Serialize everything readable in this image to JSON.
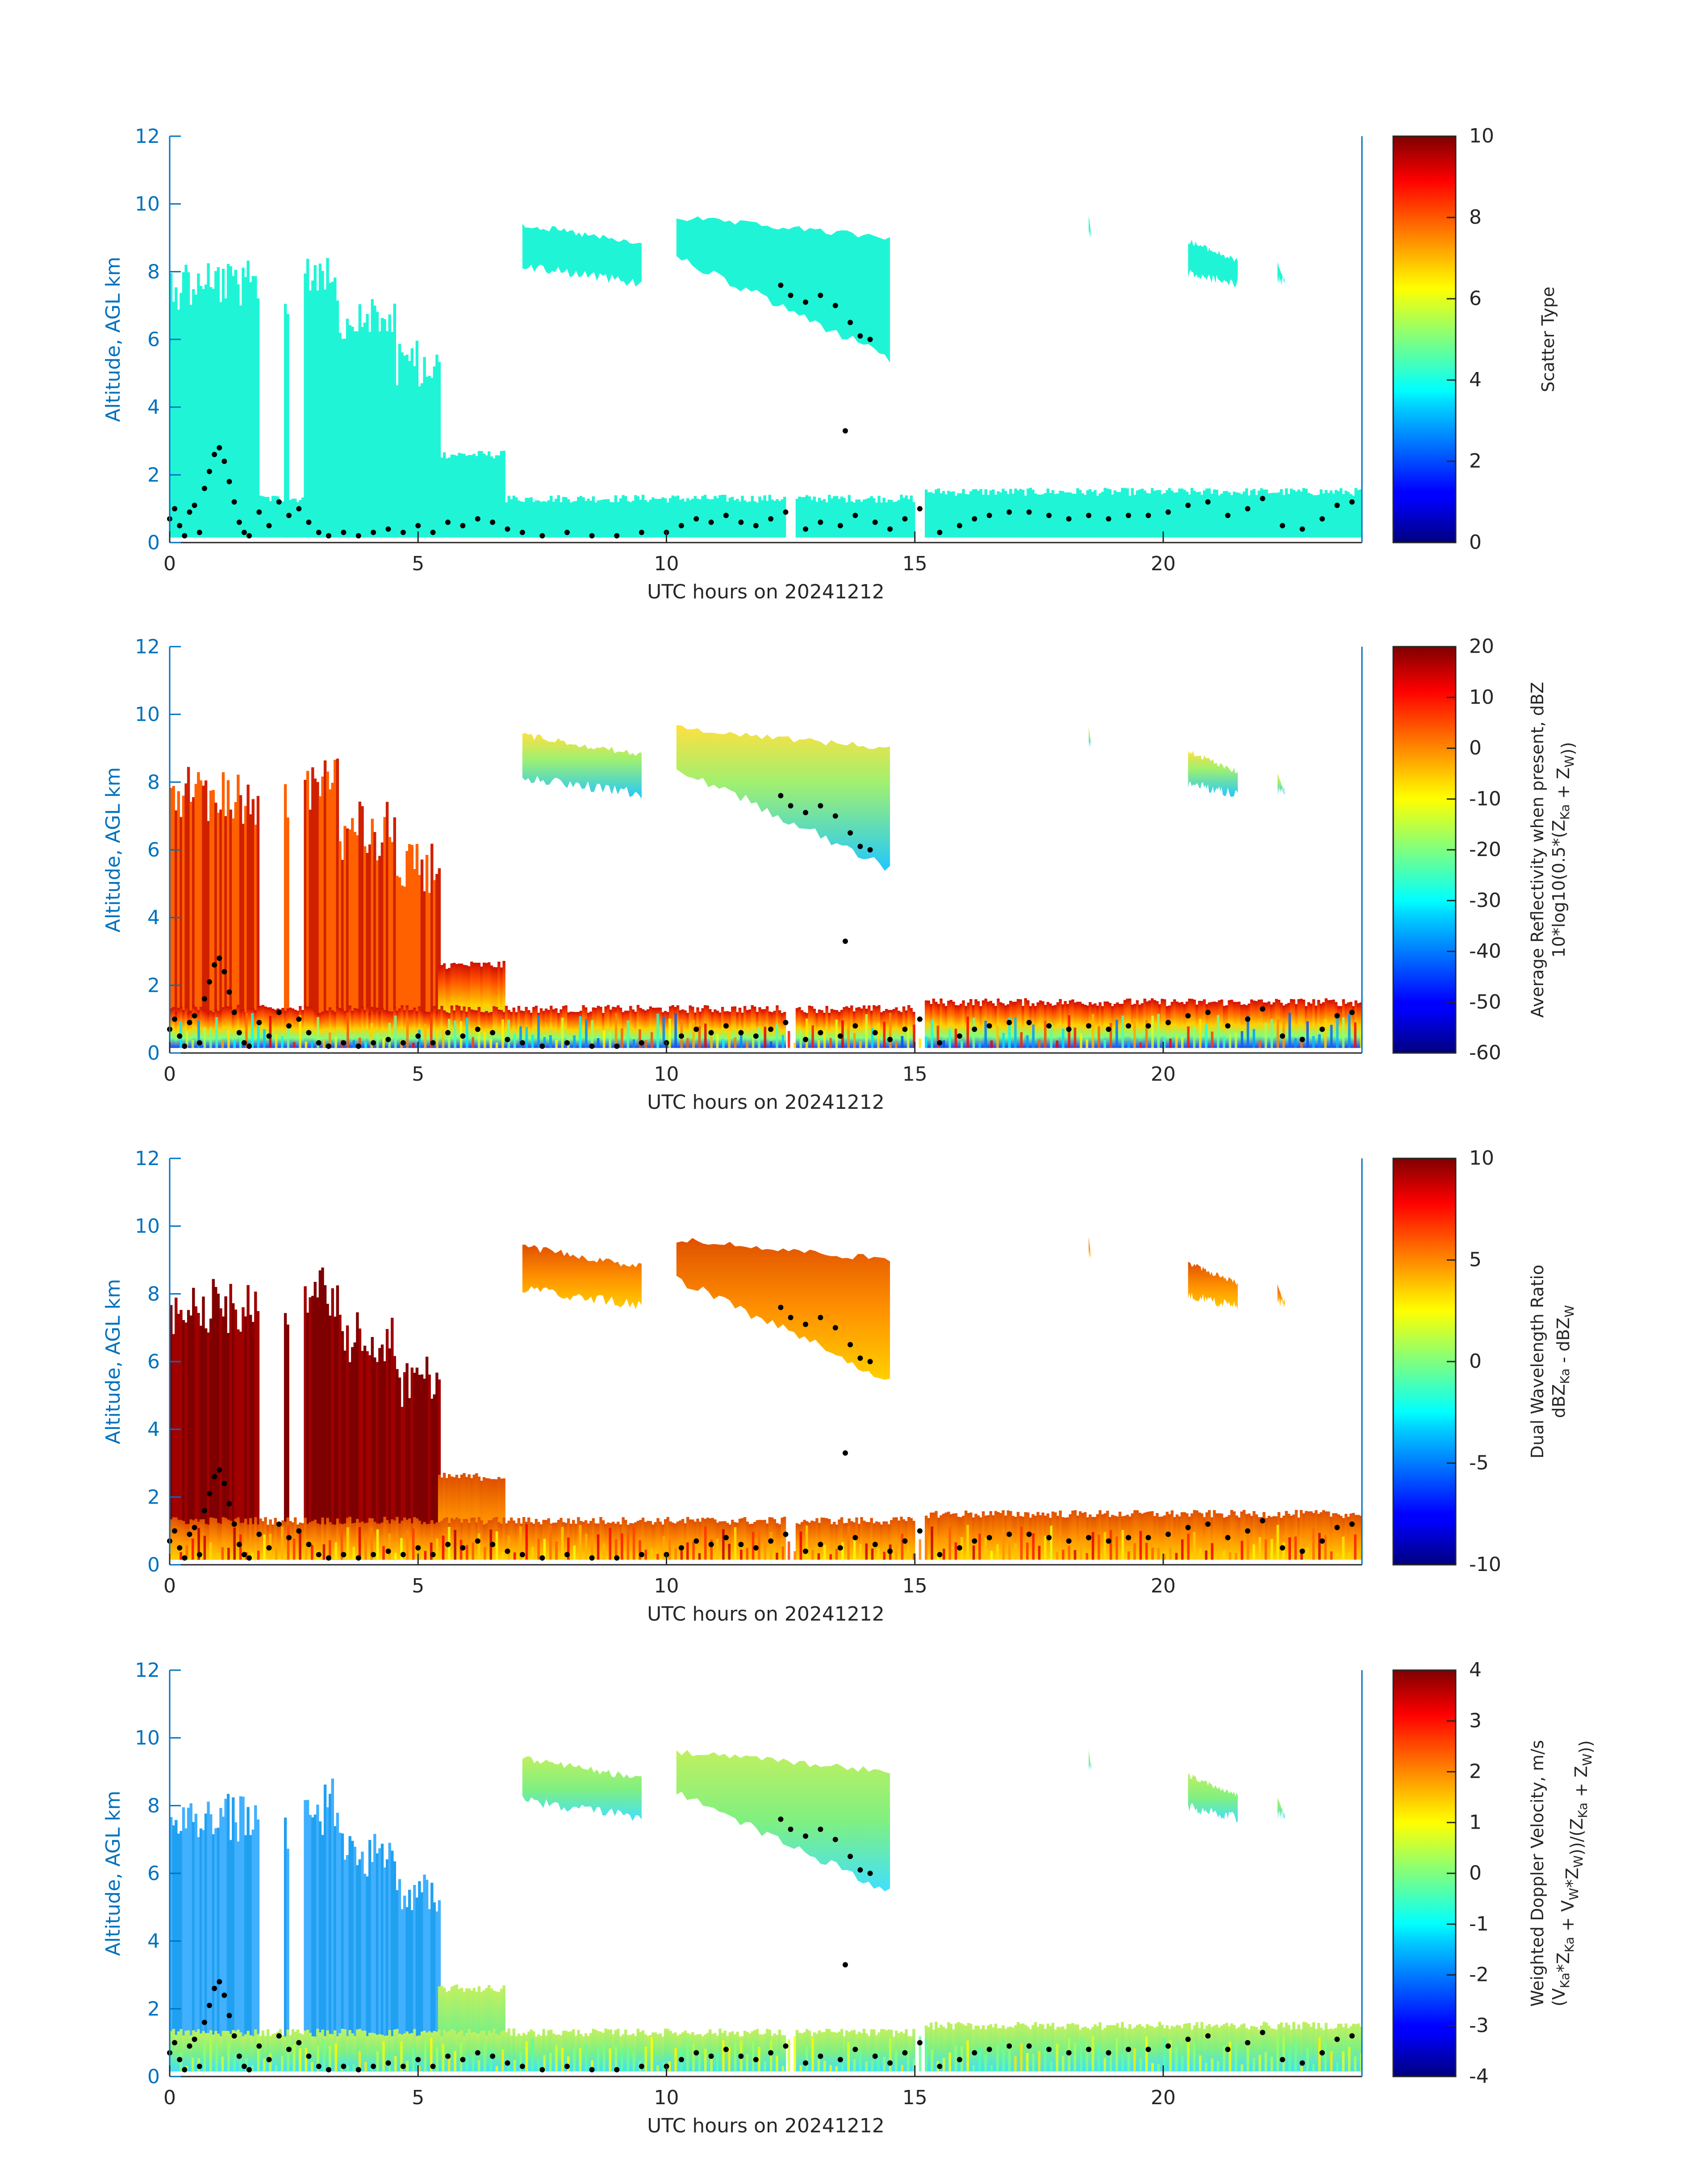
{
  "colors": {
    "axis_blue": "#0072BD",
    "text_dark": "#262626",
    "scatter_fill": "#1ff5d6",
    "height_markers": "#000000"
  },
  "chart_data": [
    {
      "type": "heatmap",
      "title": "",
      "xlabel": "UTC hours on 20241212",
      "ylabel": "Altitude, AGL km",
      "xlim": [
        0,
        24
      ],
      "ylim": [
        0,
        12
      ],
      "xticks": [
        0,
        5,
        10,
        15,
        20
      ],
      "yticks": [
        0,
        2,
        4,
        6,
        8,
        10,
        12
      ],
      "colormap": "jet",
      "colorbar": {
        "label_lines": [
          "Scatter Type"
        ],
        "ticks": [
          0,
          2,
          4,
          6,
          8,
          10
        ],
        "clim": [
          0,
          10
        ]
      },
      "field": "scatter_type"
    },
    {
      "type": "heatmap",
      "title": "",
      "xlabel": "UTC hours on 20241212",
      "ylabel": "Altitude, AGL km",
      "xlim": [
        0,
        24
      ],
      "ylim": [
        0,
        12
      ],
      "xticks": [
        0,
        5,
        10,
        15,
        20
      ],
      "yticks": [
        0,
        2,
        4,
        6,
        8,
        10,
        12
      ],
      "colormap": "jet",
      "colorbar": {
        "label_lines": [
          "Average Reflectivity when present, dBZ",
          "10*log10(0.5*(Z<sub>Ka</sub> + Z<sub>W</sub>))"
        ],
        "ticks": [
          -60,
          -50,
          -40,
          -30,
          -20,
          -10,
          0,
          10,
          20
        ],
        "clim": [
          -60,
          20
        ]
      },
      "field": "reflectivity"
    },
    {
      "type": "heatmap",
      "title": "",
      "xlabel": "UTC hours on 20241212",
      "ylabel": "Altitude, AGL km",
      "xlim": [
        0,
        24
      ],
      "ylim": [
        0,
        12
      ],
      "xticks": [
        0,
        5,
        10,
        15,
        20
      ],
      "yticks": [
        0,
        2,
        4,
        6,
        8,
        10,
        12
      ],
      "colormap": "jet",
      "colorbar": {
        "label_lines": [
          "Dual Wavelength Ratio",
          "dBZ<sub>Ka</sub> - dBZ<sub>W</sub>"
        ],
        "ticks": [
          -10,
          -5,
          0,
          5,
          10
        ],
        "clim": [
          -10,
          10
        ]
      },
      "field": "dwr"
    },
    {
      "type": "heatmap",
      "title": "",
      "xlabel": "UTC hours on 20241212",
      "ylabel": "Altitude, AGL km",
      "xlim": [
        0,
        24
      ],
      "ylim": [
        0,
        12
      ],
      "xticks": [
        0,
        5,
        10,
        15,
        20
      ],
      "yticks": [
        0,
        2,
        4,
        6,
        8,
        10,
        12
      ],
      "colormap": "jet",
      "colorbar": {
        "label_lines": [
          "Weighted Doppler Velocity, m/s",
          "(V<sub>Ka</sub>*Z<sub>Ka</sub> + V<sub>W</sub>*Z<sub>W</sub>))/(Z<sub>Ka</sub> + Z<sub>W</sub>))"
        ],
        "ticks": [
          -4,
          -3,
          -2,
          -1,
          0,
          1,
          2,
          3,
          4
        ],
        "clim": [
          -4,
          4
        ]
      },
      "field": "velocity"
    }
  ],
  "echo_regions": [
    {
      "t0": 0.0,
      "t1": 1.8,
      "top": 8.2
    },
    {
      "t0": 2.3,
      "t1": 2.35,
      "top": 7.8
    },
    {
      "t0": 2.7,
      "t1": 3.35,
      "top": 8.6
    },
    {
      "t0": 3.35,
      "t1": 4.5,
      "top": 7.2
    },
    {
      "t0": 4.5,
      "t1": 5.4,
      "top": 6.0
    },
    {
      "t0": 5.4,
      "t1": 6.7,
      "top": 2.6
    },
    {
      "t0": 0.0,
      "t1": 12.4,
      "top": 1.3
    },
    {
      "t0": 12.6,
      "t1": 15.0,
      "top": 1.3
    },
    {
      "t0": 15.2,
      "t1": 24.0,
      "top": 1.5
    }
  ],
  "upper_clouds": [
    {
      "t0": 7.1,
      "t1": 9.5,
      "top": 9.5,
      "base_start": 8.3,
      "base_end": 7.8
    },
    {
      "t0": 10.2,
      "t1": 14.5,
      "top": 9.7,
      "base_start": 8.6,
      "base_end": 5.6
    },
    {
      "t0": 18.5,
      "t1": 18.55,
      "top": 9.7,
      "base_start": 9.3,
      "base_end": 9.3
    },
    {
      "t0": 20.5,
      "t1": 21.5,
      "top": 9.0,
      "base_start": 8.1,
      "base_end": 7.8
    },
    {
      "t0": 22.3,
      "t1": 22.45,
      "top": 8.3,
      "base_start": 7.9,
      "base_end": 7.9
    }
  ],
  "height_markers": [
    [
      0.0,
      0.7
    ],
    [
      0.1,
      1.0
    ],
    [
      0.2,
      0.5
    ],
    [
      0.3,
      0.2
    ],
    [
      0.4,
      0.9
    ],
    [
      0.5,
      1.1
    ],
    [
      0.6,
      0.3
    ],
    [
      0.7,
      1.6
    ],
    [
      0.8,
      2.1
    ],
    [
      0.9,
      2.6
    ],
    [
      1.0,
      2.8
    ],
    [
      1.1,
      2.4
    ],
    [
      1.2,
      1.8
    ],
    [
      1.3,
      1.2
    ],
    [
      1.4,
      0.6
    ],
    [
      1.5,
      0.3
    ],
    [
      1.6,
      0.2
    ],
    [
      1.8,
      0.9
    ],
    [
      2.0,
      0.5
    ],
    [
      2.2,
      1.2
    ],
    [
      2.4,
      0.8
    ],
    [
      2.6,
      1.0
    ],
    [
      2.8,
      0.6
    ],
    [
      3.0,
      0.3
    ],
    [
      3.2,
      0.2
    ],
    [
      3.5,
      0.3
    ],
    [
      3.8,
      0.2
    ],
    [
      4.1,
      0.3
    ],
    [
      4.4,
      0.4
    ],
    [
      4.7,
      0.3
    ],
    [
      5.0,
      0.5
    ],
    [
      5.3,
      0.3
    ],
    [
      5.6,
      0.6
    ],
    [
      5.9,
      0.5
    ],
    [
      6.2,
      0.7
    ],
    [
      6.5,
      0.6
    ],
    [
      6.8,
      0.4
    ],
    [
      7.1,
      0.3
    ],
    [
      7.5,
      0.2
    ],
    [
      8.0,
      0.3
    ],
    [
      8.5,
      0.2
    ],
    [
      9.0,
      0.2
    ],
    [
      9.5,
      0.3
    ],
    [
      10.0,
      0.3
    ],
    [
      10.3,
      0.5
    ],
    [
      10.6,
      0.7
    ],
    [
      10.9,
      0.6
    ],
    [
      11.2,
      0.8
    ],
    [
      11.5,
      0.6
    ],
    [
      11.8,
      0.5
    ],
    [
      12.1,
      0.7
    ],
    [
      12.4,
      0.9
    ],
    [
      12.8,
      0.4
    ],
    [
      13.1,
      0.6
    ],
    [
      13.5,
      0.5
    ],
    [
      13.8,
      0.8
    ],
    [
      14.2,
      0.6
    ],
    [
      14.5,
      0.4
    ],
    [
      14.8,
      0.7
    ],
    [
      15.1,
      1.0
    ],
    [
      15.5,
      0.3
    ],
    [
      15.9,
      0.5
    ],
    [
      16.2,
      0.7
    ],
    [
      16.5,
      0.8
    ],
    [
      16.9,
      0.9
    ],
    [
      17.3,
      0.9
    ],
    [
      17.7,
      0.8
    ],
    [
      18.1,
      0.7
    ],
    [
      18.5,
      0.8
    ],
    [
      18.9,
      0.7
    ],
    [
      19.3,
      0.8
    ],
    [
      19.7,
      0.8
    ],
    [
      20.1,
      0.9
    ],
    [
      20.5,
      1.1
    ],
    [
      20.9,
      1.2
    ],
    [
      21.3,
      0.8
    ],
    [
      21.7,
      1.0
    ],
    [
      22.0,
      1.3
    ],
    [
      22.4,
      0.5
    ],
    [
      22.8,
      0.4
    ],
    [
      23.2,
      0.7
    ],
    [
      23.5,
      1.1
    ],
    [
      23.8,
      1.2
    ],
    [
      12.3,
      7.6
    ],
    [
      12.5,
      7.3
    ],
    [
      12.8,
      7.1
    ],
    [
      13.1,
      7.3
    ],
    [
      13.4,
      7.0
    ],
    [
      13.7,
      6.5
    ],
    [
      13.9,
      6.1
    ],
    [
      14.1,
      6.0
    ],
    [
      13.6,
      3.3
    ]
  ]
}
